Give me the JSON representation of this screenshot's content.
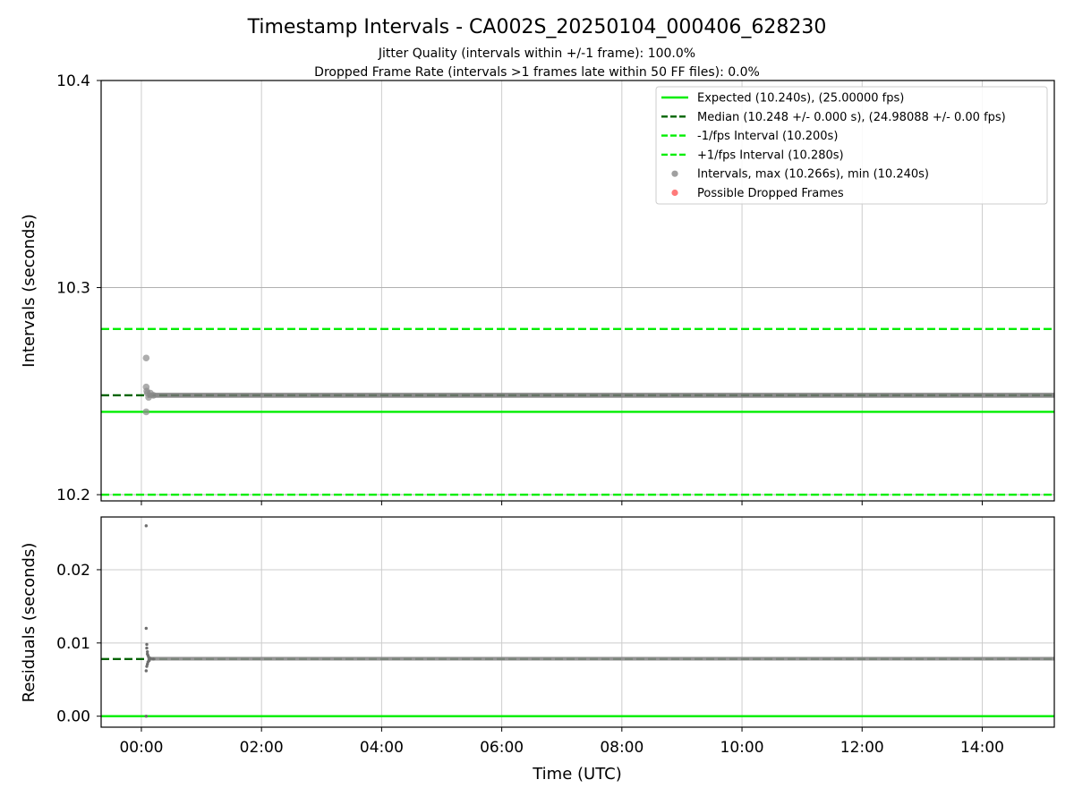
{
  "chart_data": [
    {
      "type": "scatter",
      "title": "Timestamp Intervals - CA002S_20250104_000406_628230",
      "subtitle_lines": [
        "Jitter Quality (intervals within +/-1 frame): 100.0%",
        "Dropped Frame Rate (intervals >1 frames late within 50 FF files): 0.0%"
      ],
      "ylabel": "Intervals (seconds)",
      "xlim_hours": [
        -0.67,
        15.2
      ],
      "ylim": [
        10.197,
        10.4
      ],
      "y_ticks": [
        10.2,
        10.3,
        10.4
      ],
      "y_tick_labels": [
        "10.2",
        "10.3",
        "10.4"
      ],
      "grid": true,
      "legend_placement": "top-right",
      "reference_lines": [
        {
          "name": "Expected (10.240s), (25.00000 fps)",
          "y": 10.24,
          "style": "solid",
          "color": "#00ee00"
        },
        {
          "name": "Median (10.248 +/- 0.000 s), (24.98088 +/- 0.00 fps)",
          "y": 10.248,
          "style": "dashed",
          "color": "#006400"
        },
        {
          "name": "-1/fps Interval (10.200s)",
          "y": 10.2,
          "style": "dashed",
          "color": "#00ee00"
        },
        {
          "name": "+1/fps Interval (10.280s)",
          "y": 10.28,
          "style": "dashed",
          "color": "#00ee00"
        }
      ],
      "point_series": [
        {
          "name": "Intervals, max (10.266s), min (10.240s)",
          "color": "#808080"
        },
        {
          "name": "Possible Dropped Frames",
          "color": "#ff4d4d"
        }
      ],
      "sample_points": [
        [
          0.08,
          10.266
        ],
        [
          0.08,
          10.252
        ],
        [
          0.09,
          10.25
        ],
        [
          0.1,
          10.249
        ],
        [
          0.08,
          10.24
        ],
        [
          0.12,
          10.247
        ],
        [
          0.15,
          10.249
        ],
        [
          0.2,
          10.248
        ]
      ],
      "band": {
        "x_start": 0.1,
        "x_end": 15.2,
        "y_low": 10.2468,
        "y_high": 10.2492
      }
    },
    {
      "type": "scatter",
      "xlabel": "Time (UTC)",
      "ylabel": "Residuals (seconds)",
      "xlim_hours": [
        -0.67,
        15.2
      ],
      "ylim": [
        -0.0015,
        0.0272
      ],
      "x_ticks": [
        0,
        2,
        4,
        6,
        8,
        10,
        12,
        14
      ],
      "x_tick_labels": [
        "00:00",
        "02:00",
        "04:00",
        "06:00",
        "08:00",
        "10:00",
        "12:00",
        "14:00"
      ],
      "y_ticks": [
        0.0,
        0.01,
        0.02
      ],
      "y_tick_labels": [
        "0.00",
        "0.01",
        "0.02"
      ],
      "grid": true,
      "reference_lines": [
        {
          "y": 0.0,
          "style": "solid",
          "color": "#00ee00"
        },
        {
          "y": 0.0078,
          "style": "dashed",
          "color": "#006400"
        }
      ],
      "sample_points": [
        [
          0.08,
          0.026
        ],
        [
          0.08,
          0.012
        ],
        [
          0.09,
          0.0098
        ],
        [
          0.09,
          0.0093
        ],
        [
          0.1,
          0.0088
        ],
        [
          0.1,
          0.0085
        ],
        [
          0.11,
          0.0083
        ],
        [
          0.12,
          0.0081
        ],
        [
          0.09,
          0.0068
        ],
        [
          0.1,
          0.0071
        ],
        [
          0.11,
          0.0074
        ],
        [
          0.08,
          0.0062
        ],
        [
          0.13,
          0.0076
        ],
        [
          0.15,
          0.0079
        ],
        [
          0.2,
          0.0078
        ],
        [
          0.08,
          0.0
        ]
      ],
      "band": {
        "x_start": 0.1,
        "x_end": 15.2,
        "y_low": 0.0076,
        "y_high": 0.0081
      }
    }
  ]
}
